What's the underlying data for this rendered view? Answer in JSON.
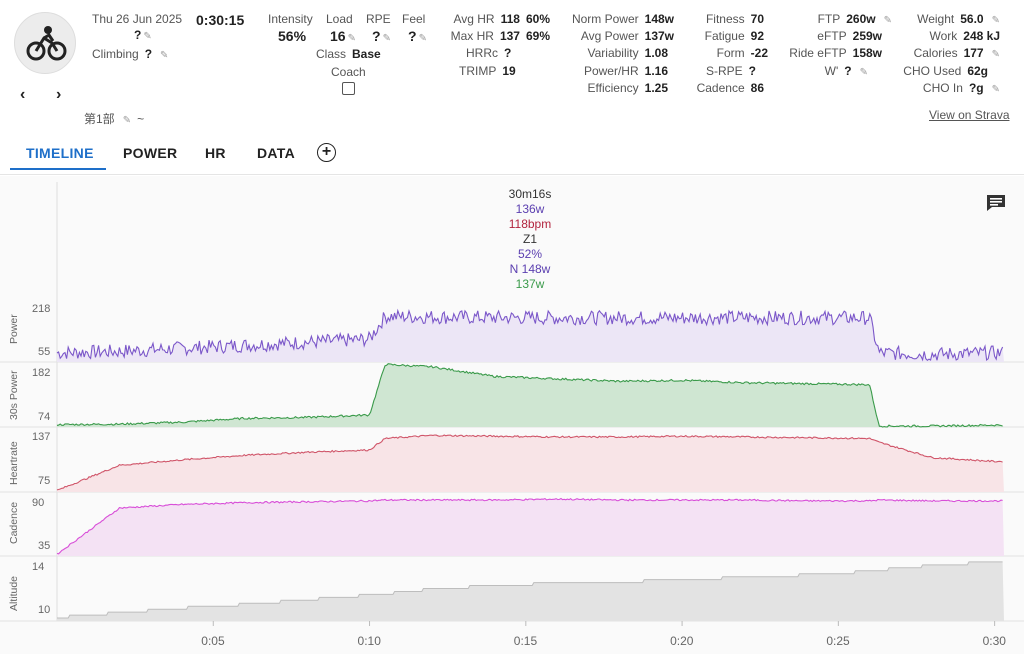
{
  "activity": {
    "date": "Thu 26 Jun 2025",
    "duration": "0:30:15",
    "name": "?",
    "climbing_label": "Climbing",
    "climbing_value": "?",
    "segment_name": "第1部",
    "segment_suffix": "~",
    "view_on_strava": "View on Strava"
  },
  "metrics": {
    "intensity_label": "Intensity",
    "intensity_value": "56%",
    "load_label": "Load",
    "load_value": "16",
    "rpe_label": "RPE",
    "rpe_value": "?",
    "feel_label": "Feel",
    "feel_value": "?",
    "class_label": "Class",
    "class_value": "Base",
    "coach_label": "Coach",
    "avg_hr_label": "Avg HR",
    "avg_hr_value": "118",
    "avg_hr_pct": "60%",
    "max_hr_label": "Max HR",
    "max_hr_value": "137",
    "max_hr_pct": "69%",
    "hrrc_label": "HRRc",
    "hrrc_value": "?",
    "trimp_label": "TRIMP",
    "trimp_value": "19",
    "norm_power_label": "Norm Power",
    "norm_power_value": "148w",
    "avg_power_label": "Avg Power",
    "avg_power_value": "137w",
    "variability_label": "Variability",
    "variability_value": "1.08",
    "power_hr_label": "Power/HR",
    "power_hr_value": "1.16",
    "efficiency_label": "Efficiency",
    "efficiency_value": "1.25",
    "fitness_label": "Fitness",
    "fitness_value": "70",
    "fatigue_label": "Fatigue",
    "fatigue_value": "92",
    "form_label": "Form",
    "form_value": "-22",
    "srpe_label": "S-RPE",
    "srpe_value": "?",
    "cadence_label": "Cadence",
    "cadence_value": "86",
    "ftp_label": "FTP",
    "ftp_value": "260w",
    "eftp_label": "eFTP",
    "eftp_value": "259w",
    "ride_eftp_label": "Ride eFTP",
    "ride_eftp_value": "158w",
    "wprime_label": "W'",
    "wprime_value": "?",
    "weight_label": "Weight",
    "weight_value": "56.0",
    "work_label": "Work",
    "work_value": "248 kJ",
    "calories_label": "Calories",
    "calories_value": "177",
    "cho_used_label": "CHO Used",
    "cho_used_value": "62g",
    "cho_in_label": "CHO In",
    "cho_in_value": "?g"
  },
  "tabs": [
    "TIMELINE",
    "POWER",
    "HR",
    "DATA"
  ],
  "tooltip": {
    "time": "30m16s",
    "power": "136w",
    "heartrate": "118bpm",
    "zone": "Z1",
    "pct": "52%",
    "norm": "N 148w",
    "avg30": "137w"
  },
  "colors": {
    "power": "#7b57c9",
    "power_fill": "#ece6f6",
    "power30": "#3a9a4a",
    "power30_fill": "#cfe6d2",
    "heartrate": "#d0566a",
    "heartrate_fill": "#f8e4e7",
    "cadence": "#d84fd8",
    "cadence_fill": "#f4e2f4",
    "altitude": "#bdbdbd",
    "altitude_fill": "#e3e3e3",
    "tab_active": "#1e6fc9"
  },
  "chart_data": {
    "type": "line",
    "x": [
      0,
      2,
      4,
      6,
      8,
      10,
      10.5,
      12,
      14,
      16,
      18,
      20,
      22,
      24,
      26,
      26.3,
      28,
      30
    ],
    "x_ticks": [
      "0:05",
      "0:10",
      "0:15",
      "0:20",
      "0:25",
      "0:30"
    ],
    "xlim": [
      0,
      30.3
    ],
    "series": [
      {
        "name": "Power",
        "y_ticks": [
          55,
          218
        ],
        "ylim": [
          30,
          240
        ],
        "values": [
          60,
          65,
          75,
          85,
          95,
          105,
          180,
          178,
          176,
          175,
          175,
          175,
          176,
          175,
          175,
          60,
          55,
          60
        ]
      },
      {
        "name": "30s Power",
        "y_ticks": [
          74,
          182
        ],
        "ylim": [
          60,
          195
        ],
        "values": [
          65,
          66,
          70,
          78,
          80,
          85,
          190,
          185,
          165,
          160,
          155,
          157,
          152,
          150,
          148,
          62,
          62,
          64
        ]
      },
      {
        "name": "Heartrate",
        "y_ticks": [
          75,
          137
        ],
        "ylim": [
          60,
          145
        ],
        "values": [
          62,
          95,
          102,
          108,
          112,
          115,
          130,
          134,
          133,
          132,
          132,
          133,
          132,
          131,
          130,
          125,
          105,
          100
        ]
      },
      {
        "name": "Cadence",
        "y_ticks": [
          35,
          90
        ],
        "ylim": [
          28,
          100
        ],
        "values": [
          30,
          82,
          86,
          88,
          89,
          90,
          91,
          91,
          91,
          92,
          91,
          91,
          91,
          90,
          90,
          91,
          90,
          90
        ]
      },
      {
        "name": "Altitude",
        "y_ticks": [
          10,
          14
        ],
        "ylim": [
          9,
          14.5
        ],
        "values": [
          9.3,
          9.7,
          10.1,
          10.4,
          10.8,
          11.2,
          11.3,
          11.7,
          12.0,
          12.2,
          12.3,
          12.5,
          12.7,
          12.9,
          13.2,
          13.3,
          13.7,
          14.0
        ]
      }
    ]
  }
}
